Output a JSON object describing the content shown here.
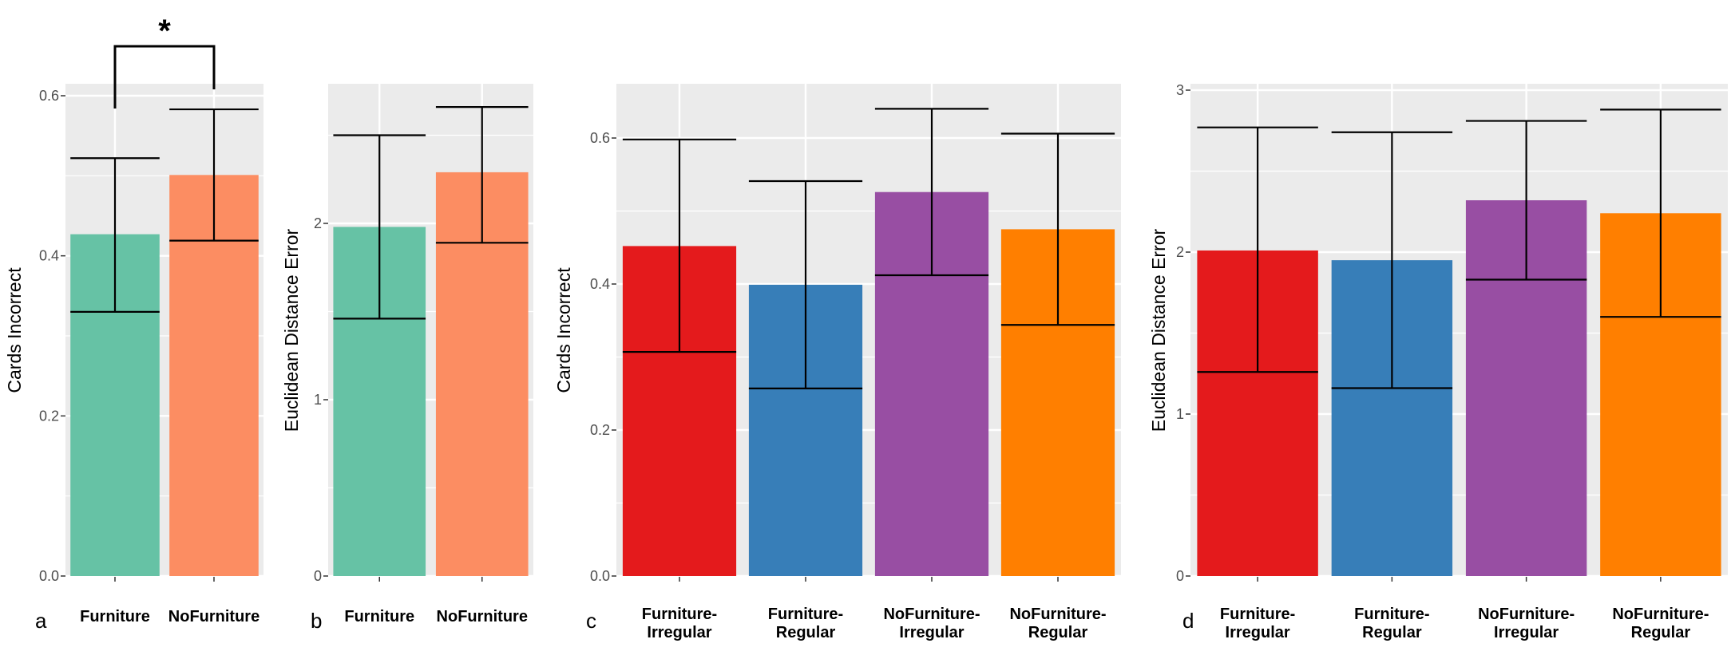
{
  "figure_title": "",
  "chart_data": [
    {
      "panel": "a",
      "type": "bar",
      "categories": [
        "Furniture",
        "NoFurniture"
      ],
      "values": [
        0.427,
        0.501
      ],
      "error_low": [
        0.33,
        0.419
      ],
      "error_high": [
        0.522,
        0.583
      ],
      "colors": [
        "#66C2A5",
        "#FC8D62"
      ],
      "xlabel": "",
      "ylabel": "Cards Incorrect",
      "ylim": [
        0,
        0.6
      ],
      "yticks": [
        0,
        0.2,
        0.4,
        0.6
      ],
      "ytick_labels": [
        "0.0",
        "0.2",
        "0.4",
        "0.6"
      ],
      "grid": true,
      "significance": {
        "label": "*",
        "between": [
          0,
          1
        ]
      }
    },
    {
      "panel": "b",
      "type": "bar",
      "categories": [
        "Furniture",
        "NoFurniture"
      ],
      "values": [
        1.98,
        2.29
      ],
      "error_low": [
        1.46,
        1.89
      ],
      "error_high": [
        2.5,
        2.66
      ],
      "colors": [
        "#66C2A5",
        "#FC8D62"
      ],
      "xlabel": "",
      "ylabel": "Euclidean Distance Error",
      "ylim": [
        0,
        2
      ],
      "yticks": [
        0,
        1,
        2
      ],
      "ytick_labels": [
        "0",
        "1",
        "2"
      ],
      "grid": true
    },
    {
      "panel": "c",
      "type": "bar",
      "categories": [
        "Furniture-\nIrregular",
        "Furniture-\nRegular",
        "NoFurniture-\nIrregular",
        "NoFurniture-\nRegular"
      ],
      "values": [
        0.452,
        0.399,
        0.526,
        0.475
      ],
      "error_low": [
        0.307,
        0.257,
        0.412,
        0.344
      ],
      "error_high": [
        0.598,
        0.541,
        0.64,
        0.606
      ],
      "colors": [
        "#E41A1C",
        "#377EB8",
        "#984EA3",
        "#FF7F00"
      ],
      "xlabel": "",
      "ylabel": "Cards Incorrect",
      "ylim": [
        0,
        0.6
      ],
      "yticks": [
        0,
        0.2,
        0.4,
        0.6
      ],
      "ytick_labels": [
        "0.0",
        "0.2",
        "0.4",
        "0.6"
      ],
      "grid": true
    },
    {
      "panel": "d",
      "type": "bar",
      "categories": [
        "Furniture-\nIrregular",
        "Furniture-\nRegular",
        "NoFurniture-\nIrregular",
        "NoFurniture-\nRegular"
      ],
      "values": [
        2.01,
        1.95,
        2.32,
        2.24
      ],
      "error_low": [
        1.26,
        1.16,
        1.83,
        1.6
      ],
      "error_high": [
        2.77,
        2.74,
        2.81,
        2.88
      ],
      "colors": [
        "#E41A1C",
        "#377EB8",
        "#984EA3",
        "#FF7F00"
      ],
      "xlabel": "",
      "ylabel": "Euclidean Distance Error",
      "ylim": [
        0,
        3
      ],
      "yticks": [
        0,
        1,
        2,
        3
      ],
      "ytick_labels": [
        "0",
        "1",
        "2",
        "3"
      ],
      "grid": true
    }
  ],
  "style": {
    "panel_background": "#EBEBEB",
    "grid_color": "#FFFFFF",
    "error_bar_color": "#000000",
    "tick_color": "#333333"
  }
}
